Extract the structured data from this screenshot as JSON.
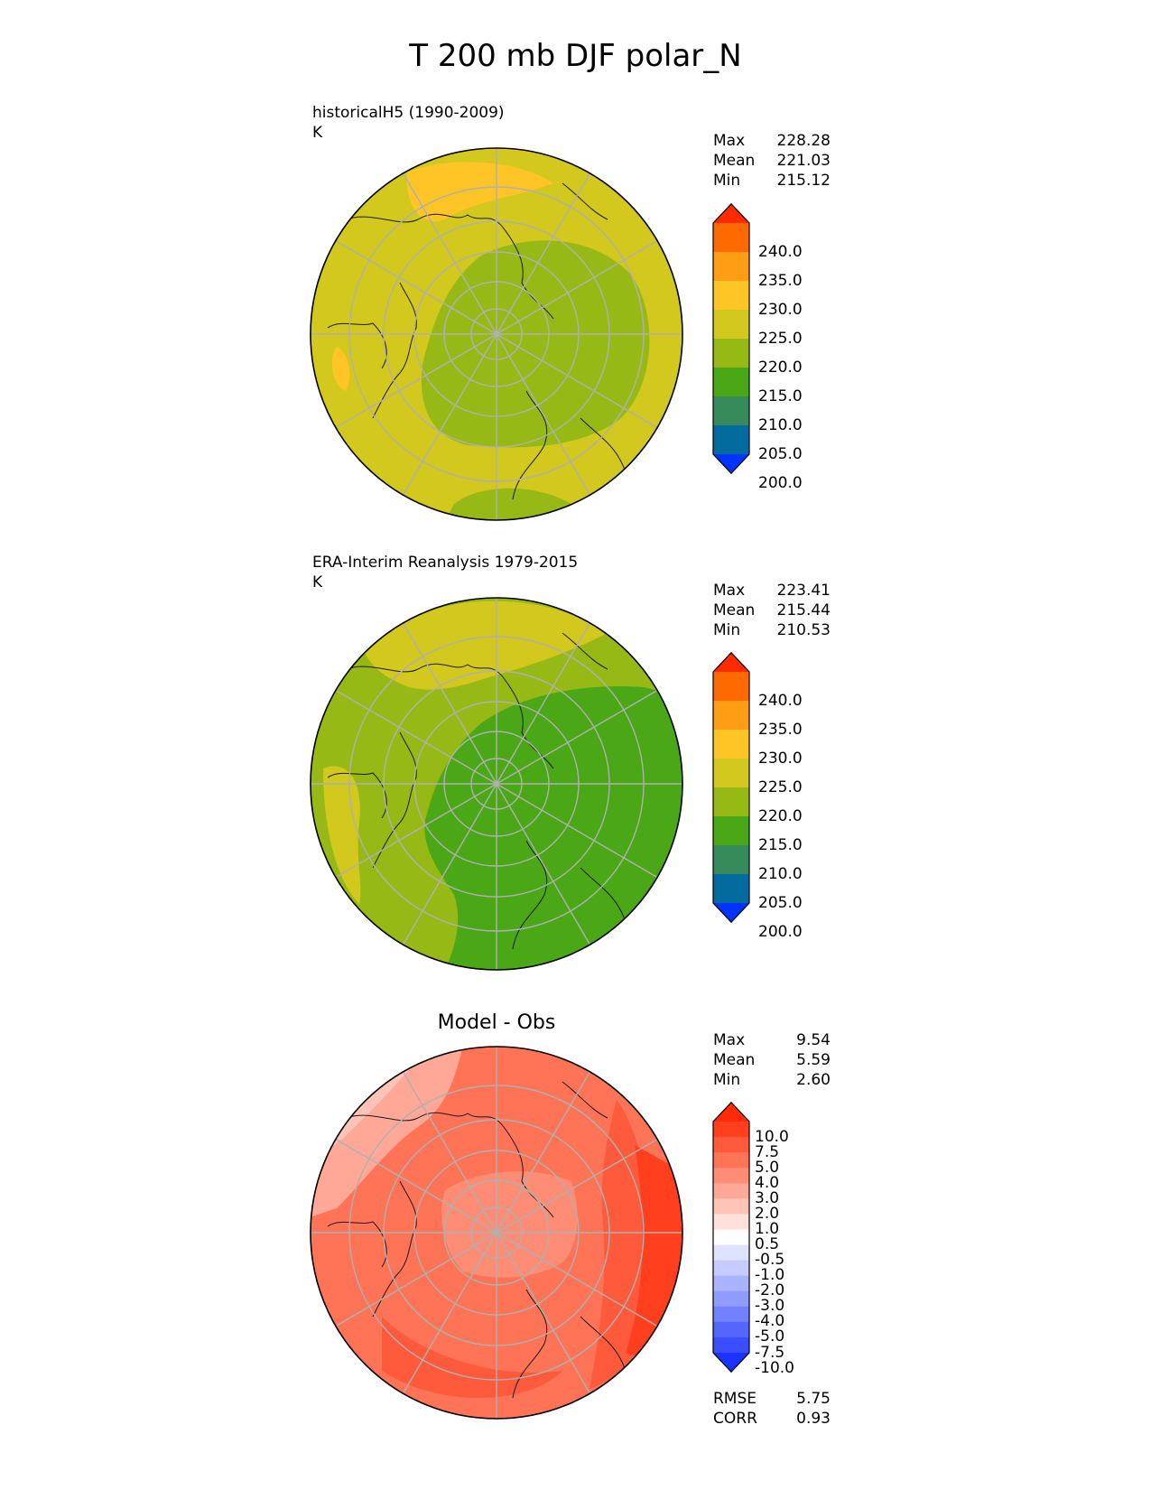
{
  "title": "T 200 mb DJF polar_N",
  "panels": [
    {
      "id": "test",
      "title_line1": "historicalH5 (1990-2009)",
      "title_line2": "K",
      "stats": [
        {
          "label": "Max",
          "value": "228.28"
        },
        {
          "label": "Mean",
          "value": "221.03"
        },
        {
          "label": "Min",
          "value": "215.12"
        }
      ],
      "colorbar_ticks": [
        "240.0",
        "235.0",
        "230.0",
        "225.0",
        "220.0",
        "215.0",
        "210.0",
        "205.0",
        "200.0"
      ],
      "colorbar_colors": [
        "#ff2b00",
        "#ff6a00",
        "#ff9d14",
        "#ffc426",
        "#d2c81e",
        "#97b916",
        "#4aa817",
        "#378a5b",
        "#046b9f",
        "#0033ff"
      ]
    },
    {
      "id": "reference",
      "title_line1": "ERA-Interim Reanalysis 1979-2015",
      "title_line2": "K",
      "stats": [
        {
          "label": "Max",
          "value": "223.41"
        },
        {
          "label": "Mean",
          "value": "215.44"
        },
        {
          "label": "Min",
          "value": "210.53"
        }
      ],
      "colorbar_ticks": [
        "240.0",
        "235.0",
        "230.0",
        "225.0",
        "220.0",
        "215.0",
        "210.0",
        "205.0",
        "200.0"
      ],
      "colorbar_colors": [
        "#ff2b00",
        "#ff6a00",
        "#ff9d14",
        "#ffc426",
        "#d2c81e",
        "#97b916",
        "#4aa817",
        "#378a5b",
        "#046b9f",
        "#0033ff"
      ]
    },
    {
      "id": "diff",
      "title": "Model - Obs",
      "stats": [
        {
          "label": "Max",
          "value": "9.54"
        },
        {
          "label": "Mean",
          "value": "5.59"
        },
        {
          "label": "Min",
          "value": "2.60"
        }
      ],
      "metrics": [
        {
          "label": "RMSE",
          "value": "5.75"
        },
        {
          "label": "CORR",
          "value": "0.93"
        }
      ],
      "colorbar_ticks": [
        "10.0",
        "7.5",
        "5.0",
        "4.0",
        "3.0",
        "2.0",
        "1.0",
        "0.5",
        "-0.5",
        "-1.0",
        "-2.0",
        "-3.0",
        "-4.0",
        "-5.0",
        "-7.5",
        "-10.0"
      ],
      "colorbar_colors": [
        "#ff2a0a",
        "#ff3f1e",
        "#ff5a3c",
        "#ff7356",
        "#ff8c75",
        "#ffa898",
        "#ffc3b8",
        "#ffe0da",
        "#ffffff",
        "#dfe3ff",
        "#c6ccff",
        "#aab3ff",
        "#8f9bff",
        "#7281ff",
        "#5566ff",
        "#3a4dff",
        "#1a33ff"
      ]
    }
  ]
}
